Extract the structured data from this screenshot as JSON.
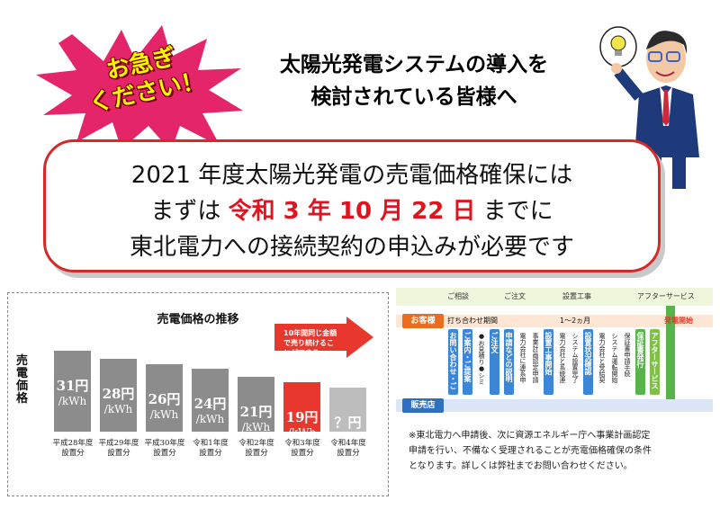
{
  "urgent_badge": {
    "line1": "お急ぎ",
    "line2": "ください！",
    "color_bg": "#e5256a",
    "color_text": "#fff700"
  },
  "headline": {
    "line1": "太陽光発電システムの導入を",
    "line2": "検討されている皆様へ"
  },
  "mascot": {
    "icon": "lightbulb-idea-icon"
  },
  "notice": {
    "line1": "2021 年度太陽光発電の売電価格確保には",
    "line2_pre": "まずは ",
    "deadline": "令和 3 年 10 月 22 日",
    "line2_post": " までに",
    "line3": "東北電力への接続契約の申込みが必要です",
    "border_color": "#d32a2a"
  },
  "chart_data": {
    "type": "bar",
    "title": "売電価格の推移",
    "ylabel": "売電価格",
    "categories": [
      "平成28年度設置分",
      "平成29年度設置分",
      "平成30年度設置分",
      "令和1年度設置分",
      "令和2年度設置分",
      "令和3年度設置分",
      "令和4年度設置分"
    ],
    "category_lines": [
      [
        "平成28年度",
        "設置分"
      ],
      [
        "平成29年度",
        "設置分"
      ],
      [
        "平成30年度",
        "設置分"
      ],
      [
        "令和1年度",
        "設置分"
      ],
      [
        "令和2年度",
        "設置分"
      ],
      [
        "令和3年度",
        "設置分"
      ],
      [
        "令和4年度",
        "設置分"
      ]
    ],
    "values": [
      31,
      28,
      26,
      24,
      21,
      19,
      null
    ],
    "value_labels": [
      "31円",
      "28円",
      "26円",
      "24円",
      "21円",
      "19円",
      "？円"
    ],
    "unit": "/kWh",
    "highlight_index": 5,
    "colors": {
      "normal": "#8c8c8c",
      "highlight": "#e8382d",
      "future": "#bdbdbd"
    },
    "callout": "10年間同じ金額で売り続けることができる"
  },
  "flow": {
    "phases": [
      "ご相談",
      "ご注文",
      "設置工事",
      "アフターサービス"
    ],
    "customer_label": "お客様",
    "seller_label": "販売店",
    "inquiry_period": "打ち合わせ期間",
    "duration": "1〜2ヵ月",
    "start": "発電開始",
    "steps": [
      "お問い合わせ・ご相談",
      "ご案内・ご提案",
      "●お見積り●シミュレーション",
      "ご注文",
      "申請などの説明",
      "電力会社に連系申請",
      "事業計画認定申請",
      "設置工事開始",
      "電力会社と系統連系",
      "システム設置完了",
      "設置状況確認",
      "電力会社と受給契約",
      "システム運転開始",
      "保証書申請手続",
      "保証書発行",
      "アフターサービス"
    ]
  },
  "footnote": {
    "line1": "※東北電力へ申請後、次に資源エネルギー庁へ事業計画認定",
    "line2": "申請を行い、不備なく受理されることが売電価格確保の条件",
    "line3": "となります。詳しくは弊社までお問い合わせください。"
  }
}
